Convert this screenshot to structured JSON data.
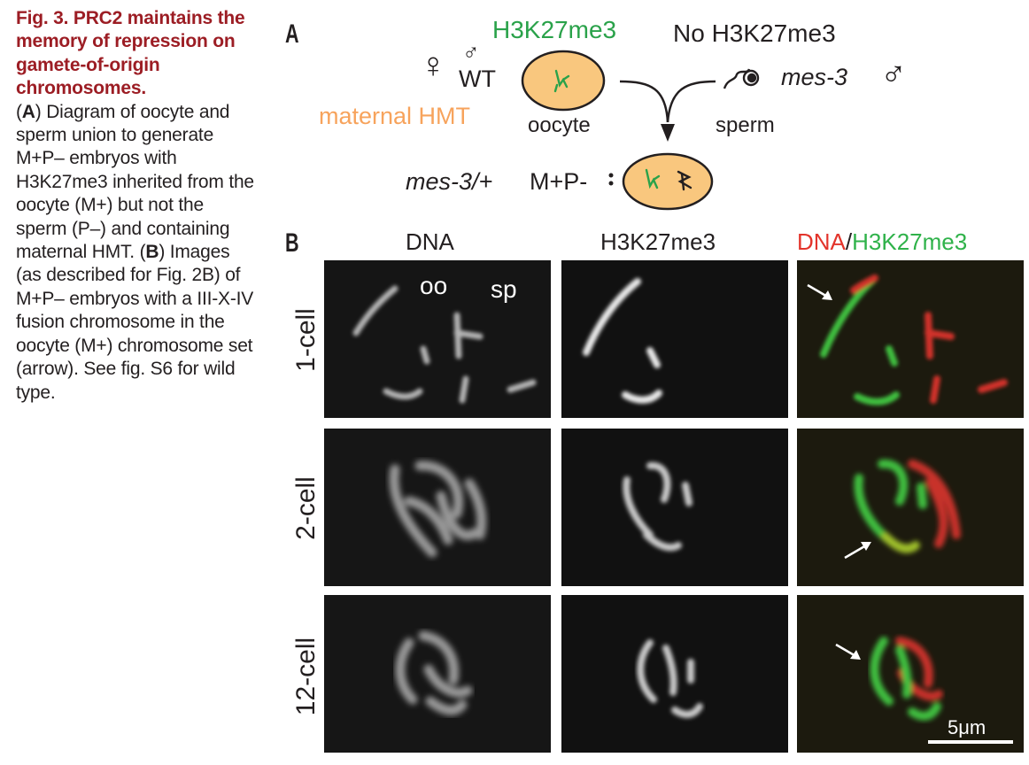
{
  "caption": {
    "title": "Fig. 3. PRC2 maintains the memory of repres­sion on gamete-of-origin chromosomes.",
    "body_parts": {
      "p1": "(",
      "a": "A",
      "p2": ") Diagram of oocyte and sperm union to generate M+P– embryos with H3K27me3 inherited from the oocyte (M+) but not the sperm (P–) and containing maternal HMT. (",
      "b": "B",
      "p3": ") Images (as described for Fig. 2B) of M+P– embryos with a III-X-IV fusion chromosome in the oocyte (M+) chromo­some set (arrow). See fig. S6 for wild type."
    }
  },
  "panel_a": {
    "letter": "A",
    "h3k27me3": "H3K27me3",
    "no_h3k27me3": "No H3K27me3",
    "female_symbol": "♀",
    "male_symbol": "♂",
    "wt": "WT",
    "maternal_hmt": "maternal HMT",
    "oocyte": "oocyte",
    "sperm": "sperm",
    "mes3": "mes-3",
    "mes3_het": "mes-3/+",
    "mp": "M+P-",
    "colors": {
      "green": "#2aa24a",
      "orange": "#f7a35c",
      "cell_fill": "#f9c77e"
    }
  },
  "panel_b": {
    "letter": "B",
    "columns": {
      "dna": "DNA",
      "h3": "H3K27me3",
      "merge_dna": "DNA",
      "merge_slash": "/",
      "merge_h3": "H3K27me3"
    },
    "rows": [
      "1-cell",
      "2-cell",
      "12-cell"
    ],
    "annotations": {
      "oo": "oo",
      "sp": "sp"
    },
    "scale_bar": "5μm",
    "colors": {
      "dna_red": "#e3342b",
      "h3_green": "#2fb24a"
    }
  }
}
